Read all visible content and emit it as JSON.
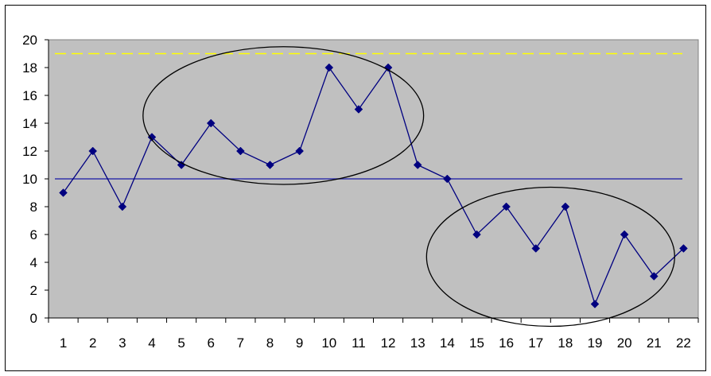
{
  "chart_data": {
    "type": "line",
    "title": "",
    "xlabel": "",
    "ylabel": "",
    "x": [
      1,
      2,
      3,
      4,
      5,
      6,
      7,
      8,
      9,
      10,
      11,
      12,
      13,
      14,
      15,
      16,
      17,
      18,
      19,
      20,
      21,
      22
    ],
    "x_tick_labels": [
      "1",
      "2",
      "3",
      "4",
      "5",
      "6",
      "7",
      "8",
      "9",
      "10",
      "11",
      "12",
      "13",
      "14",
      "15",
      "16",
      "17",
      "18",
      "19",
      "20",
      "21",
      "22"
    ],
    "y_tick_labels": [
      "0",
      "2",
      "4",
      "6",
      "8",
      "10",
      "12",
      "14",
      "16",
      "18",
      "20"
    ],
    "ylim": [
      0,
      20
    ],
    "grid": false,
    "legend": "none",
    "series": [
      {
        "values": [
          9,
          12,
          8,
          13,
          11,
          14,
          12,
          11,
          12,
          18,
          15,
          18,
          11,
          10,
          6,
          8,
          5,
          8,
          1,
          6,
          3,
          5
        ],
        "color": "#000080",
        "marker": "diamond"
      }
    ],
    "reference_lines": [
      {
        "y": 10,
        "color": "#3333aa",
        "style": "solid"
      },
      {
        "y": 19,
        "color": "#ffff00",
        "style": "dashed"
      }
    ],
    "annotations": [
      {
        "type": "ellipse",
        "center_x": 8.5,
        "center_y": 14.6,
        "span_x": [
          3.7,
          13.2
        ],
        "span_y": [
          9.6,
          19.5
        ]
      },
      {
        "type": "ellipse",
        "center_x": 17.5,
        "center_y": 4.4,
        "span_x": [
          13.3,
          21.7
        ],
        "span_y": -0.6
      }
    ],
    "plot_background": "#c0c0c0"
  }
}
